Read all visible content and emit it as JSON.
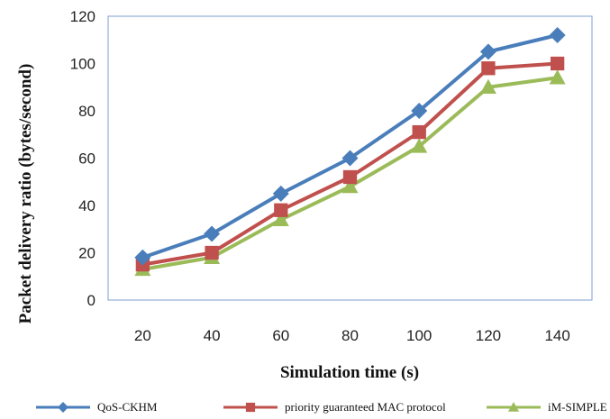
{
  "chart_data": {
    "type": "line",
    "xlabel": "Simulation time (s)",
    "ylabel": "Packet delivery ratio (bytes/second)",
    "x": [
      20,
      40,
      60,
      80,
      100,
      120,
      140
    ],
    "ylim": [
      0,
      120
    ],
    "yticks": [
      0,
      20,
      40,
      60,
      80,
      100,
      120
    ],
    "grid": false,
    "legend_position": "bottom",
    "series": [
      {
        "name": "QoS-CKHM",
        "marker": "diamond",
        "color": "#4a7ebb",
        "values": [
          18,
          28,
          45,
          60,
          80,
          105,
          112
        ]
      },
      {
        "name": "priority guaranteed MAC protocol",
        "marker": "square",
        "color": "#c0504d",
        "values": [
          15,
          20,
          38,
          52,
          71,
          98,
          100
        ]
      },
      {
        "name": "iM-SIMPLE",
        "marker": "triangle",
        "color": "#9bbb59",
        "values": [
          13,
          18,
          34,
          48,
          65,
          90,
          94
        ]
      }
    ]
  }
}
